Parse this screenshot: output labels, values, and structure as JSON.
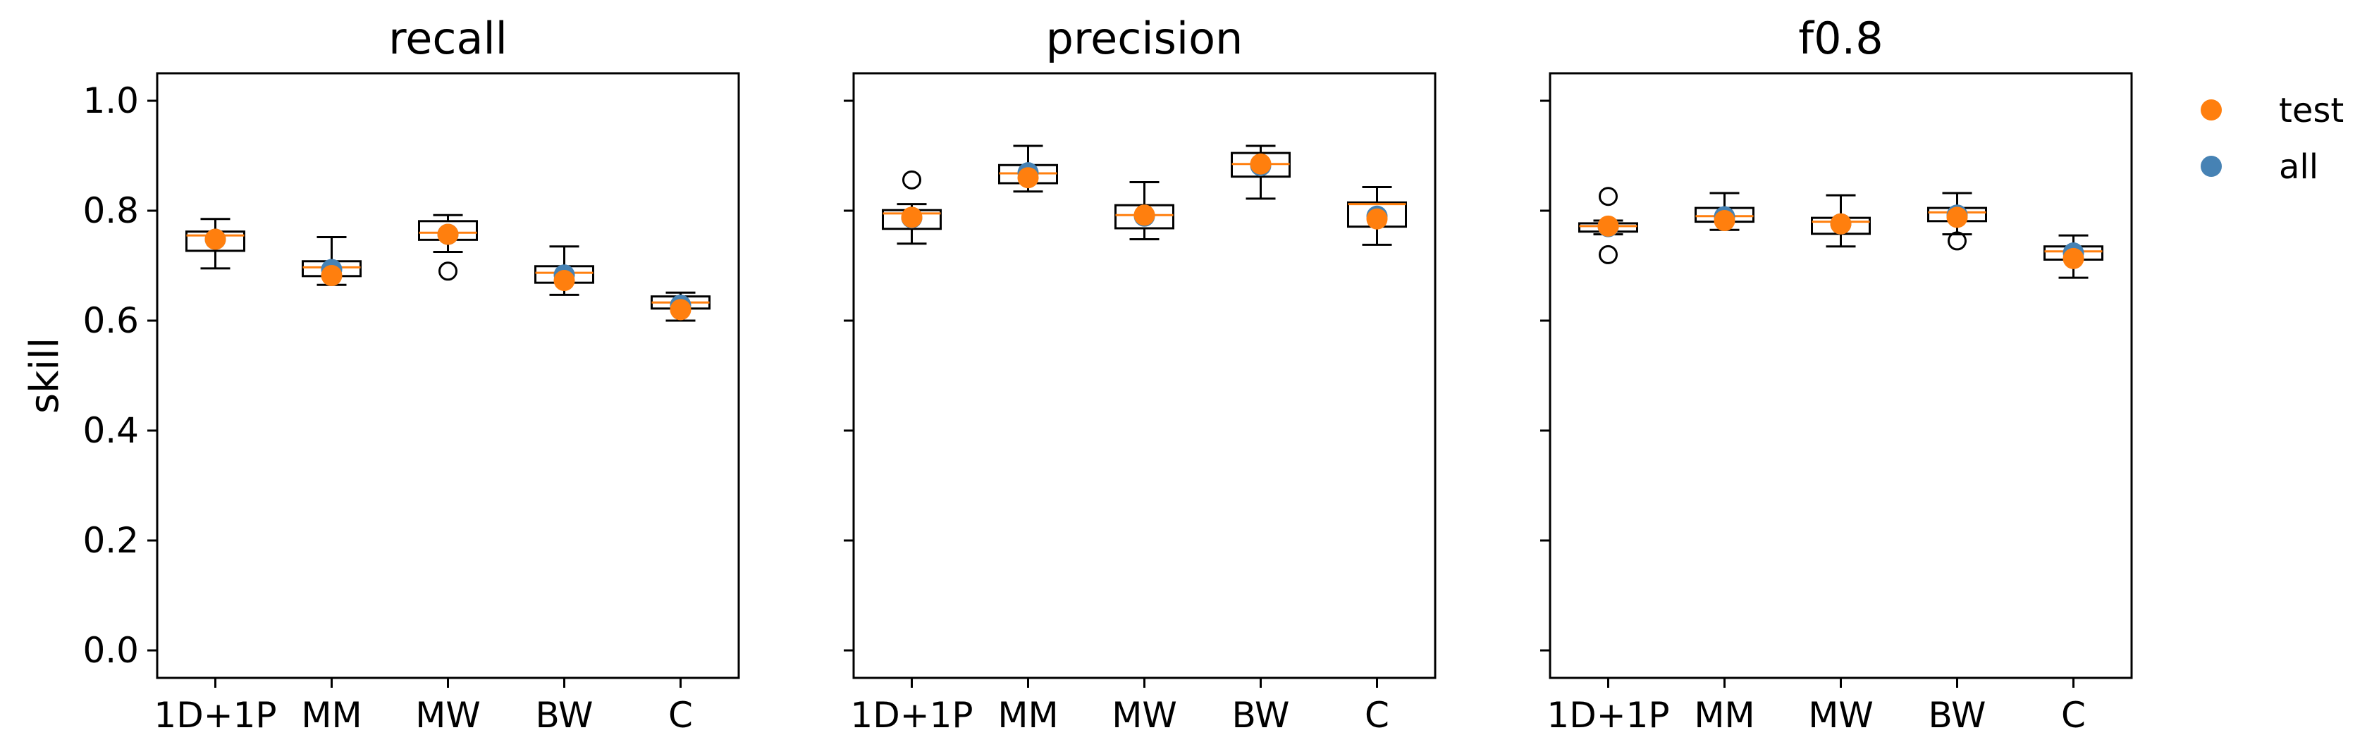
{
  "chart_data": {
    "type": "box",
    "ylabel": "skill",
    "ylim": [
      -0.05,
      1.05
    ],
    "yticks": [
      "0.0",
      "0.2",
      "0.4",
      "0.6",
      "0.8",
      "1.0"
    ],
    "ytick_values": [
      0.0,
      0.2,
      0.4,
      0.6,
      0.8,
      1.0
    ],
    "categories": [
      "1D+1P",
      "MM",
      "MW",
      "BW",
      "C"
    ],
    "legend": {
      "placement": "outside-top-right",
      "entries": [
        {
          "label": "test",
          "color": "#ff7f0e"
        },
        {
          "label": "all",
          "color": "#4682b4"
        }
      ]
    },
    "colors": {
      "box": "#000000",
      "median": "#ff7f0e",
      "test": "#ff7f0e",
      "all": "#4682b4"
    },
    "panels": [
      {
        "title": "recall",
        "boxes": [
          {
            "category": "1D+1P",
            "whislo": 0.695,
            "q1": 0.727,
            "median": 0.755,
            "q3": 0.762,
            "whishi": 0.785,
            "fliers": [],
            "all": 0.748,
            "test": 0.748
          },
          {
            "category": "MM",
            "whislo": 0.665,
            "q1": 0.681,
            "median": 0.697,
            "q3": 0.708,
            "whishi": 0.752,
            "fliers": [],
            "all": 0.693,
            "test": 0.682
          },
          {
            "category": "MW",
            "whislo": 0.725,
            "q1": 0.747,
            "median": 0.76,
            "q3": 0.781,
            "whishi": 0.792,
            "fliers": [
              0.69
            ],
            "all": 0.757,
            "test": 0.757
          },
          {
            "category": "BW",
            "whislo": 0.647,
            "q1": 0.669,
            "median": 0.687,
            "q3": 0.699,
            "whishi": 0.735,
            "fliers": [],
            "all": 0.683,
            "test": 0.673
          },
          {
            "category": "C",
            "whislo": 0.6,
            "q1": 0.622,
            "median": 0.633,
            "q3": 0.644,
            "whishi": 0.651,
            "fliers": [],
            "all": 0.628,
            "test": 0.62
          }
        ]
      },
      {
        "title": "precision",
        "boxes": [
          {
            "category": "1D+1P",
            "whislo": 0.74,
            "q1": 0.767,
            "median": 0.795,
            "q3": 0.801,
            "whishi": 0.812,
            "fliers": [
              0.856
            ],
            "all": 0.787,
            "test": 0.788
          },
          {
            "category": "MM",
            "whislo": 0.835,
            "q1": 0.85,
            "median": 0.868,
            "q3": 0.883,
            "whishi": 0.918,
            "fliers": [],
            "all": 0.869,
            "test": 0.86
          },
          {
            "category": "MW",
            "whislo": 0.748,
            "q1": 0.768,
            "median": 0.792,
            "q3": 0.81,
            "whishi": 0.852,
            "fliers": [],
            "all": 0.79,
            "test": 0.792
          },
          {
            "category": "BW",
            "whislo": 0.822,
            "q1": 0.862,
            "median": 0.885,
            "q3": 0.905,
            "whishi": 0.918,
            "fliers": [],
            "all": 0.882,
            "test": 0.885
          },
          {
            "category": "C",
            "whislo": 0.738,
            "q1": 0.771,
            "median": 0.812,
            "q3": 0.815,
            "whishi": 0.843,
            "fliers": [],
            "all": 0.79,
            "test": 0.785
          }
        ]
      },
      {
        "title": "f0.8",
        "boxes": [
          {
            "category": "1D+1P",
            "whislo": 0.757,
            "q1": 0.762,
            "median": 0.772,
            "q3": 0.777,
            "whishi": 0.782,
            "fliers": [
              0.826,
              0.72
            ],
            "all": 0.771,
            "test": 0.772
          },
          {
            "category": "MM",
            "whislo": 0.765,
            "q1": 0.78,
            "median": 0.79,
            "q3": 0.805,
            "whishi": 0.832,
            "fliers": [],
            "all": 0.789,
            "test": 0.782
          },
          {
            "category": "MW",
            "whislo": 0.735,
            "q1": 0.758,
            "median": 0.78,
            "q3": 0.787,
            "whishi": 0.828,
            "fliers": [],
            "all": 0.776,
            "test": 0.776
          },
          {
            "category": "BW",
            "whislo": 0.757,
            "q1": 0.781,
            "median": 0.797,
            "q3": 0.805,
            "whishi": 0.832,
            "fliers": [
              0.745
            ],
            "all": 0.792,
            "test": 0.788
          },
          {
            "category": "C",
            "whislo": 0.678,
            "q1": 0.711,
            "median": 0.726,
            "q3": 0.735,
            "whishi": 0.755,
            "fliers": [],
            "all": 0.723,
            "test": 0.713
          }
        ]
      }
    ]
  }
}
